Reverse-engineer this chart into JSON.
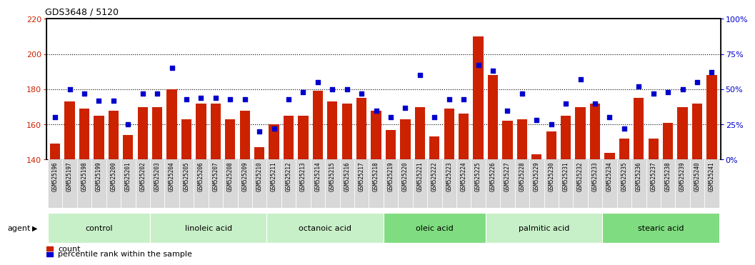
{
  "title": "GDS3648 / 5120",
  "samples": [
    "GSM525196",
    "GSM525197",
    "GSM525198",
    "GSM525199",
    "GSM525200",
    "GSM525201",
    "GSM525202",
    "GSM525203",
    "GSM525204",
    "GSM525205",
    "GSM525206",
    "GSM525207",
    "GSM525208",
    "GSM525209",
    "GSM525210",
    "GSM525211",
    "GSM525212",
    "GSM525213",
    "GSM525214",
    "GSM525215",
    "GSM525216",
    "GSM525217",
    "GSM525218",
    "GSM525219",
    "GSM525220",
    "GSM525221",
    "GSM525222",
    "GSM525223",
    "GSM525224",
    "GSM525225",
    "GSM525226",
    "GSM525227",
    "GSM525228",
    "GSM525229",
    "GSM525230",
    "GSM525231",
    "GSM525232",
    "GSM525233",
    "GSM525234",
    "GSM525235",
    "GSM525236",
    "GSM525237",
    "GSM525238",
    "GSM525239",
    "GSM525240",
    "GSM525241"
  ],
  "counts": [
    149,
    173,
    169,
    165,
    168,
    154,
    170,
    170,
    180,
    163,
    172,
    172,
    163,
    168,
    147,
    160,
    165,
    165,
    179,
    173,
    172,
    175,
    168,
    157,
    163,
    170,
    153,
    169,
    166,
    210,
    188,
    162,
    163,
    143,
    156,
    165,
    170,
    172,
    144,
    152,
    175,
    152,
    161,
    170,
    172,
    188
  ],
  "percentiles": [
    30,
    50,
    47,
    42,
    42,
    25,
    47,
    47,
    65,
    43,
    44,
    44,
    43,
    43,
    20,
    22,
    43,
    48,
    55,
    50,
    50,
    47,
    35,
    30,
    37,
    60,
    30,
    43,
    43,
    67,
    63,
    35,
    47,
    28,
    25,
    40,
    57,
    40,
    30,
    22,
    52,
    47,
    48,
    50,
    55,
    62
  ],
  "groups": [
    {
      "name": "control",
      "start": 0,
      "end": 7,
      "color": "#c8f0c8"
    },
    {
      "name": "linoleic acid",
      "start": 7,
      "end": 15,
      "color": "#c8f0c8"
    },
    {
      "name": "octanoic acid",
      "start": 15,
      "end": 23,
      "color": "#c8f0c8"
    },
    {
      "name": "oleic acid",
      "start": 23,
      "end": 30,
      "color": "#80dc80"
    },
    {
      "name": "palmitic acid",
      "start": 30,
      "end": 38,
      "color": "#c8f0c8"
    },
    {
      "name": "stearic acid",
      "start": 38,
      "end": 46,
      "color": "#80dc80"
    }
  ],
  "ylim_left": [
    140,
    220
  ],
  "yticks_left": [
    140,
    160,
    180,
    200,
    220
  ],
  "ylim_right": [
    0,
    100
  ],
  "yticks_right": [
    0,
    25,
    50,
    75,
    100
  ],
  "bar_color": "#cc2200",
  "dot_color": "#0000cc",
  "bg_color": "#ffffff",
  "grid_color": "#000000",
  "bar_bg_color": "#d8d8d8",
  "sample_divider_color": "#ffffff",
  "xlabel_color": "#cc2200",
  "ylabel_right_color": "#0000cc",
  "title_fontsize": 9,
  "tick_fontsize": 7,
  "group_fontsize": 8,
  "legend_fontsize": 8,
  "sample_fontsize": 5.5
}
